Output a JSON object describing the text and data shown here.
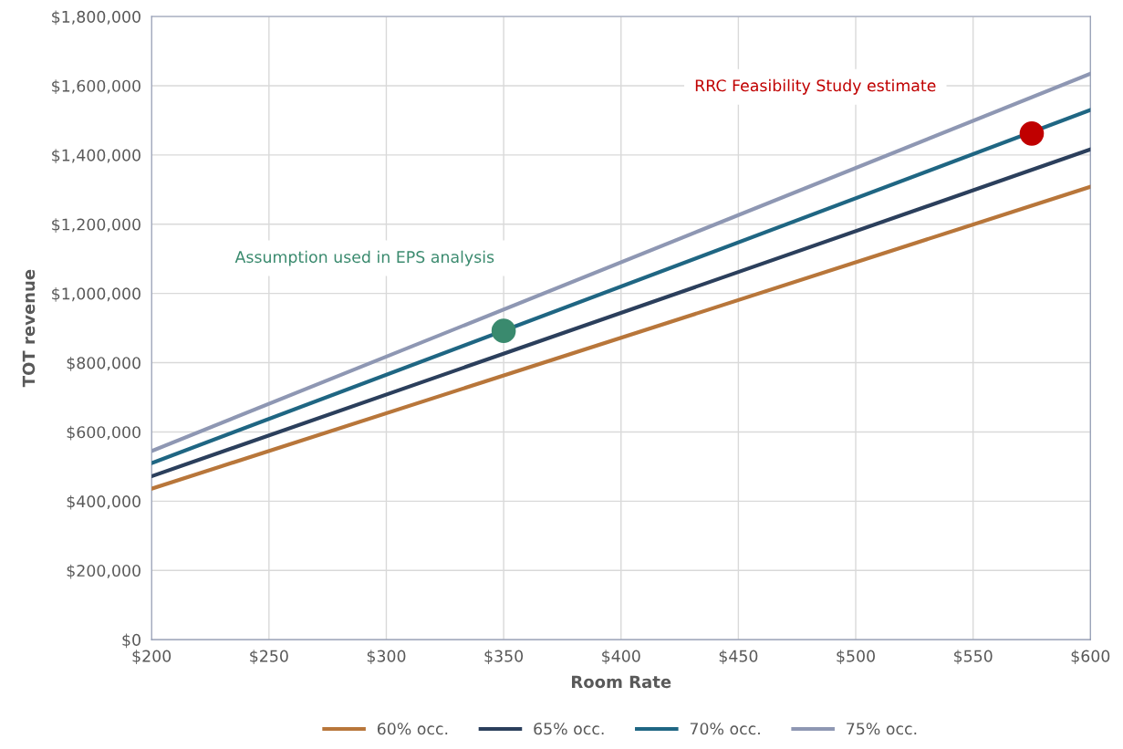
{
  "chart_data": {
    "type": "line",
    "xlabel": "Room Rate",
    "ylabel": "TOT revenue",
    "x": [
      200,
      600
    ],
    "series": [
      {
        "name": "60% occ.",
        "color": "#b8763a",
        "values": [
          436000,
          1308000
        ]
      },
      {
        "name": "65% occ.",
        "color": "#2b3f5c",
        "values": [
          472000,
          1416000
        ]
      },
      {
        "name": "70% occ.",
        "color": "#1f6683",
        "values": [
          510000,
          1530000
        ]
      },
      {
        "name": "75% occ.",
        "color": "#8e97b3",
        "values": [
          545000,
          1635000
        ]
      },
      {
        "type": "scatter",
        "marker": "circle",
        "color": "#3a8a6e",
        "x": [
          350
        ],
        "values": [
          892000
        ]
      },
      {
        "type": "scatter",
        "marker": "circle",
        "color": "#c00000",
        "x": [
          575
        ],
        "values": [
          1462000
        ]
      }
    ],
    "annotations": [
      "Assumption used in EPS analysis",
      "RRC Feasibility Study estimate"
    ],
    "xlim": [
      200,
      600
    ],
    "xticks": [
      {
        "value": 200,
        "label": "$200"
      },
      {
        "value": 250,
        "label": "$250"
      },
      {
        "value": 300,
        "label": "$300"
      },
      {
        "value": 350,
        "label": "$350"
      },
      {
        "value": 400,
        "label": "$400"
      },
      {
        "value": 450,
        "label": "$450"
      },
      {
        "value": 500,
        "label": "$500"
      },
      {
        "value": 550,
        "label": "$550"
      },
      {
        "value": 600,
        "label": "$600"
      }
    ],
    "ylim": [
      0,
      1800000
    ],
    "yticks": [
      {
        "value": 0,
        "label": "$0"
      },
      {
        "value": 200000,
        "label": "$200,000"
      },
      {
        "value": 400000,
        "label": "$400,000"
      },
      {
        "value": 600000,
        "label": "$600,000"
      },
      {
        "value": 800000,
        "label": "$800,000"
      },
      {
        "value": 1000000,
        "label": "$1,000,000"
      },
      {
        "value": 1200000,
        "label": "$1,200,000"
      },
      {
        "value": 1400000,
        "label": "$1,400,000"
      },
      {
        "value": 1600000,
        "label": "$1,600,000"
      },
      {
        "value": 1800000,
        "label": "$1,800,000"
      }
    ],
    "grid": true,
    "legend": "bottom",
    "marker": "none",
    "line_style": "solid"
  }
}
